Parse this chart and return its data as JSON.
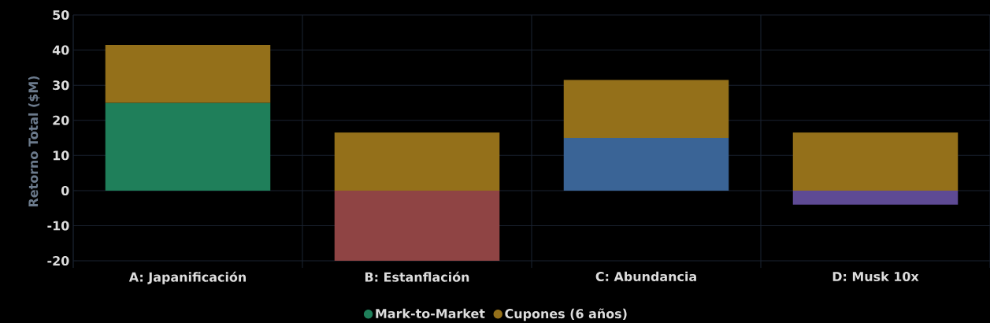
{
  "chart_data": {
    "type": "bar",
    "stacked": true,
    "ylabel": "Retorno Total ($M)",
    "categories": [
      "A: Japanificación",
      "B: Estanflación",
      "C: Abundancia",
      "D: Musk 10x"
    ],
    "series": [
      {
        "name": "Mark-to-Market",
        "colors": [
          "#1f7f5a",
          "#8f4444",
          "#3a6496",
          "#5e4a94"
        ],
        "values": [
          25,
          -20,
          15,
          -4
        ]
      },
      {
        "name": "Cupones (6 años)",
        "color": "#94701a",
        "values": [
          16.5,
          16.5,
          16.5,
          16.5
        ]
      }
    ],
    "ylim": [
      -22,
      50
    ],
    "yticks": [
      -20,
      -10,
      0,
      10,
      20,
      30,
      40,
      50
    ],
    "grid": true,
    "legend": "bottom"
  }
}
